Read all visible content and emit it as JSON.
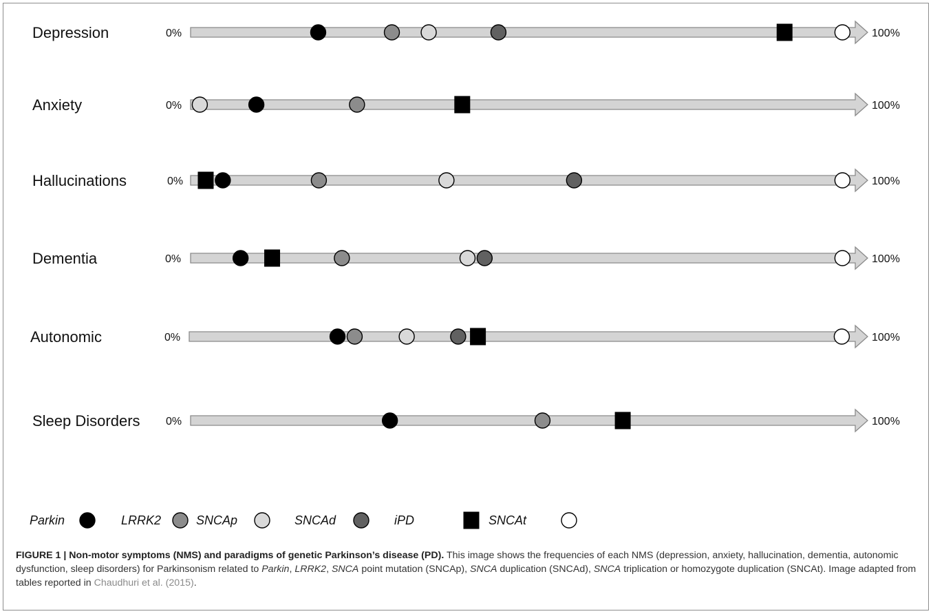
{
  "chart_data": {
    "type": "scatter",
    "axis_start_label": "0%",
    "axis_end_label": "100%",
    "x_range": [
      0,
      100
    ],
    "rows": [
      {
        "label": "Depression",
        "points": [
          {
            "series": "Parkin",
            "x": 19.4
          },
          {
            "series": "LRRK2",
            "x": 30.6
          },
          {
            "series": "SNCAp",
            "x": 36.2
          },
          {
            "series": "SNCAd",
            "x": 46.8
          },
          {
            "series": "iPD",
            "x": 90.3
          },
          {
            "series": "SNCAt",
            "x": 99.1
          }
        ]
      },
      {
        "label": "Anxiety",
        "points": [
          {
            "series": "SNCAp",
            "x": 1.4
          },
          {
            "series": "Parkin",
            "x": 10.0
          },
          {
            "series": "LRRK2",
            "x": 25.3
          },
          {
            "series": "iPD",
            "x": 41.3
          }
        ]
      },
      {
        "label": "Hallucinations",
        "points": [
          {
            "series": "iPD",
            "x": 2.3
          },
          {
            "series": "Parkin",
            "x": 4.9
          },
          {
            "series": "LRRK2",
            "x": 19.5
          },
          {
            "series": "SNCAp",
            "x": 38.9
          },
          {
            "series": "SNCAd",
            "x": 58.3
          },
          {
            "series": "SNCAt",
            "x": 99.1
          }
        ]
      },
      {
        "label": "Dementia",
        "points": [
          {
            "series": "Parkin",
            "x": 7.6
          },
          {
            "series": "iPD",
            "x": 12.4
          },
          {
            "series": "LRRK2",
            "x": 23.0
          },
          {
            "series": "SNCAp",
            "x": 42.1
          },
          {
            "series": "SNCAd",
            "x": 44.7
          },
          {
            "series": "SNCAt",
            "x": 99.1
          }
        ]
      },
      {
        "label": "Autonomic",
        "points": [
          {
            "series": "Parkin",
            "x": 22.5
          },
          {
            "series": "LRRK2",
            "x": 25.1
          },
          {
            "series": "SNCAp",
            "x": 33.0
          },
          {
            "series": "SNCAd",
            "x": 40.8
          },
          {
            "series": "iPD",
            "x": 43.8
          },
          {
            "series": "SNCAt",
            "x": 99.0
          }
        ]
      },
      {
        "label": "Sleep Disorders",
        "points": [
          {
            "series": "Parkin",
            "x": 30.3
          },
          {
            "series": "LRRK2",
            "x": 53.5
          },
          {
            "series": "iPD",
            "x": 65.7
          }
        ]
      }
    ],
    "legend": [
      {
        "name": "Parkin",
        "shape": "circle",
        "color": "#000000"
      },
      {
        "name": "LRRK2",
        "shape": "circle",
        "color": "#8c8c8c"
      },
      {
        "name": "SNCAp",
        "shape": "circle",
        "color": "#d9d9d9"
      },
      {
        "name": "SNCAd",
        "shape": "circle",
        "color": "#616161"
      },
      {
        "name": "iPD",
        "shape": "square",
        "color": "#000000"
      },
      {
        "name": "SNCAt",
        "shape": "circle",
        "color": "#ffffff"
      }
    ],
    "colors": {
      "arrow_fill": "#d4d4d4",
      "arrow_stroke": "#8a8a8a",
      "marker_stroke": "#000000"
    },
    "grid": false
  },
  "caption": {
    "label": "FIGURE 1 | Non-motor symptoms (NMS) and paradigms of genetic Parkinson’s disease (PD).",
    "parts": [
      {
        "text": " This image shows the frequencies of each NMS (depression, anxiety, hallucination, dementia, autonomic dysfunction, sleep disorders) for Parkinsonism related to ",
        "style": "normal"
      },
      {
        "text": "Parkin",
        "style": "italic"
      },
      {
        "text": ", ",
        "style": "normal"
      },
      {
        "text": "LRRK2",
        "style": "italic"
      },
      {
        "text": ", ",
        "style": "normal"
      },
      {
        "text": "SNCA",
        "style": "italic"
      },
      {
        "text": " point mutation (SNCAp), ",
        "style": "normal"
      },
      {
        "text": "SNCA",
        "style": "italic"
      },
      {
        "text": " duplication (SNCAd), ",
        "style": "normal"
      },
      {
        "text": "SNCA",
        "style": "italic"
      },
      {
        "text": " triplication or homozygote duplication (SNCAt). Image adapted from tables reported in ",
        "style": "normal"
      },
      {
        "text": "Chaudhuri et al. (2015)",
        "style": "cite"
      },
      {
        "text": ".",
        "style": "normal"
      }
    ]
  }
}
